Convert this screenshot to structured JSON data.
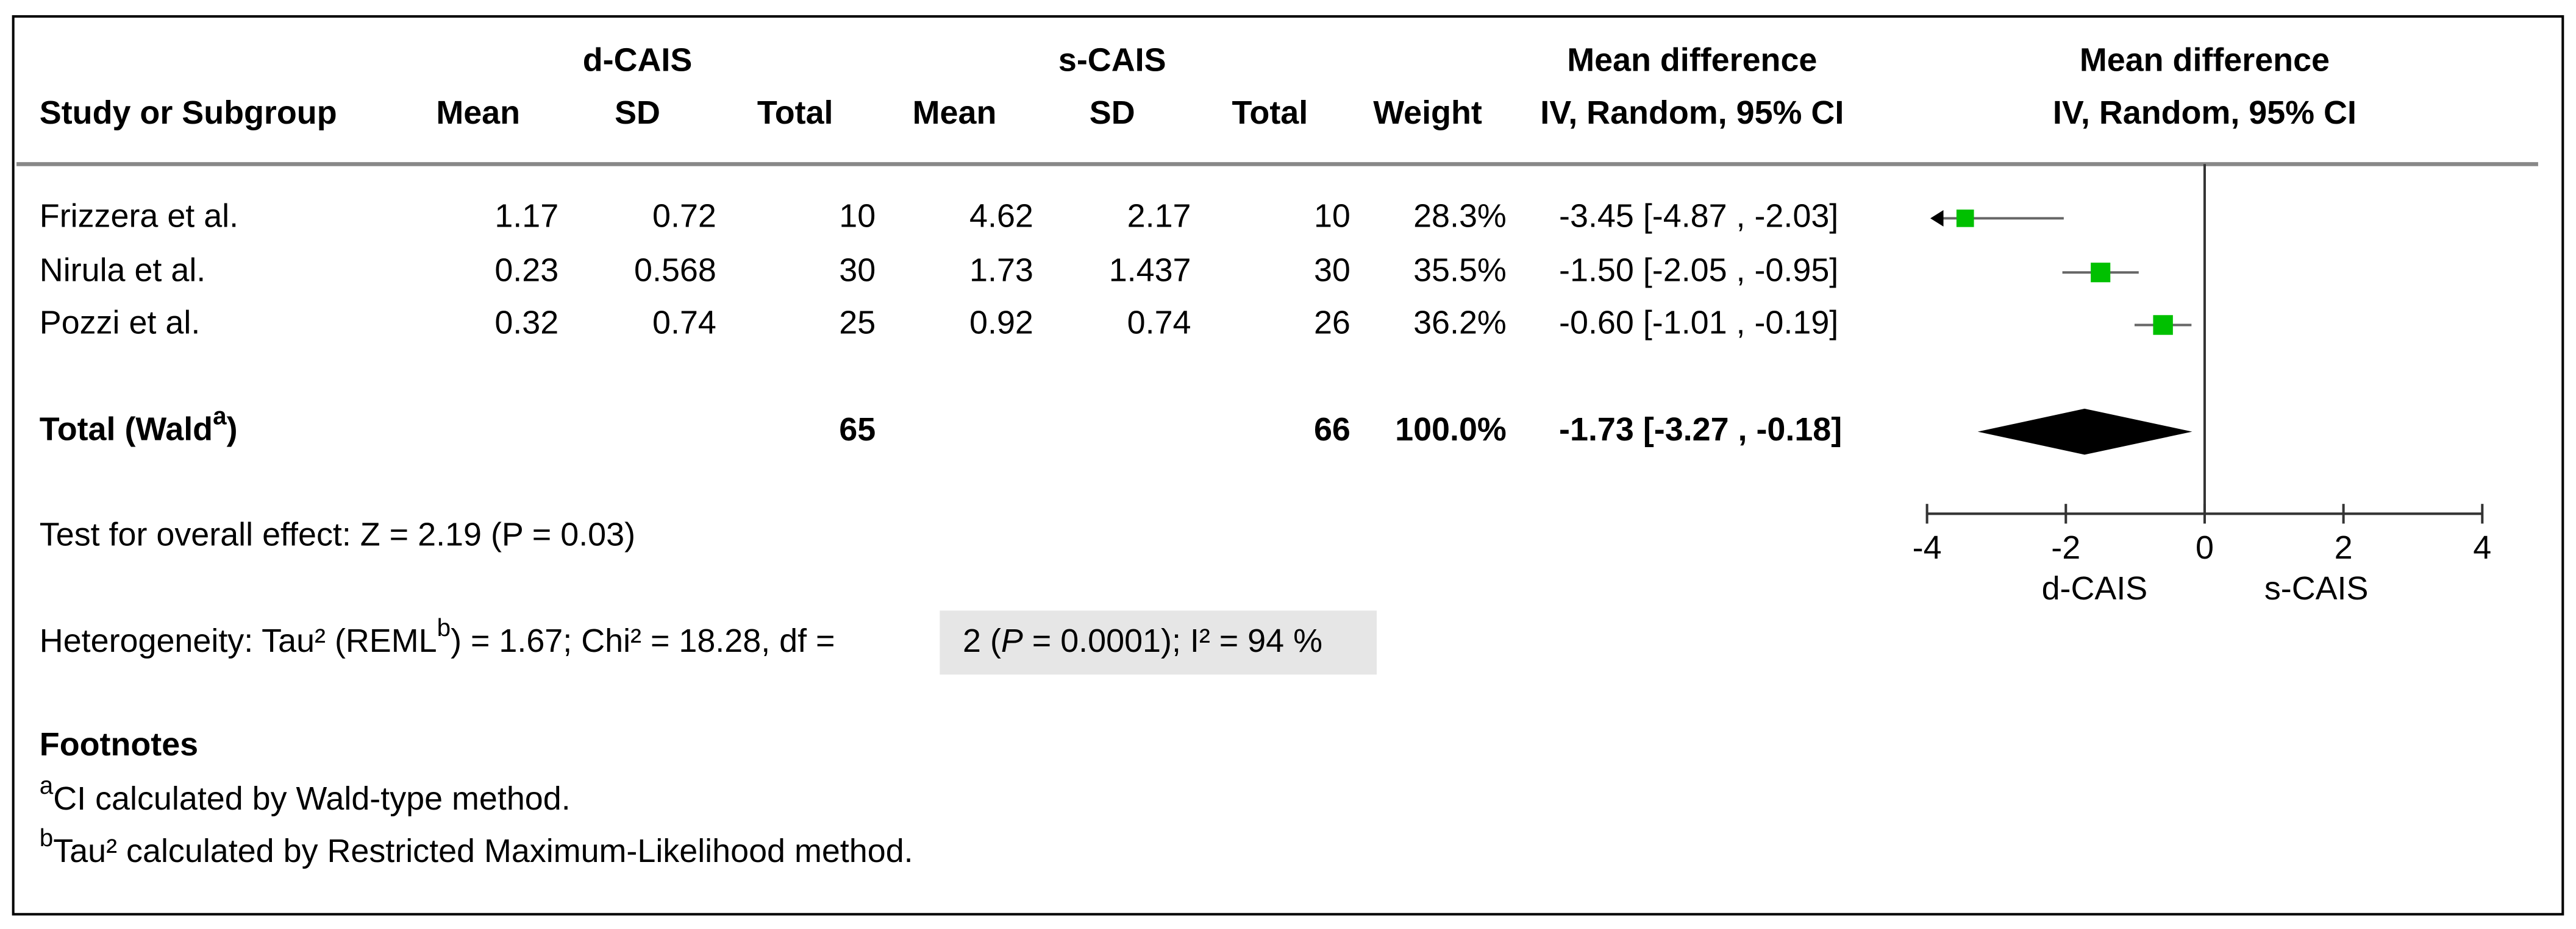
{
  "chart_data": {
    "type": "forest",
    "group_headers": [
      "d-CAIS",
      "s-CAIS"
    ],
    "columns": [
      "Study or Subgroup",
      "Mean",
      "SD",
      "Total",
      "Mean",
      "SD",
      "Total",
      "Weight"
    ],
    "effect_header": [
      "Mean difference",
      "IV, Random, 95% CI"
    ],
    "plot_header": [
      "Mean difference",
      "IV, Random, 95% CI"
    ],
    "studies": [
      {
        "name": "Frizzera et al.",
        "d_mean": 1.17,
        "d_sd": 0.72,
        "d_n": 10,
        "s_mean": 4.62,
        "s_sd": 2.17,
        "s_n": 10,
        "weight": 28.3,
        "weight_label": "28.3%",
        "md": -3.45,
        "lower": -4.87,
        "upper": -2.03,
        "ci_label": "-3.45 [-4.87 , -2.03]"
      },
      {
        "name": "Nirula et al.",
        "d_mean": 0.23,
        "d_sd": 0.568,
        "d_n": 30,
        "s_mean": 1.73,
        "s_sd": 1.437,
        "s_n": 30,
        "weight": 35.5,
        "weight_label": "35.5%",
        "md": -1.5,
        "lower": -2.05,
        "upper": -0.95,
        "ci_label": "-1.50 [-2.05 , -0.95]"
      },
      {
        "name": "Pozzi et al.",
        "d_mean": 0.32,
        "d_sd": 0.74,
        "d_n": 25,
        "s_mean": 0.92,
        "s_sd": 0.74,
        "s_n": 26,
        "weight": 36.2,
        "weight_label": "36.2%",
        "md": -0.6,
        "lower": -1.01,
        "upper": -0.19,
        "ci_label": "-0.60 [-1.01 , -0.19]"
      }
    ],
    "total": {
      "label": [
        "Total (Wald",
        "a",
        ")"
      ],
      "d_n": 65,
      "s_n": 66,
      "weight": 100,
      "weight_label": "100.0%",
      "md": -1.73,
      "lower": -3.27,
      "upper": -0.18,
      "ci_label": "-1.73 [-3.27 , -0.18]"
    },
    "overall_test": "Test for overall effect: Z = 2.19 (P = 0.03)",
    "heterogeneity": [
      "Heterogeneity: Tau² (REML",
      "b",
      ") = 1.67; Chi² = 18.28, df = "
    ],
    "heterogeneity_box": [
      "2 (",
      "P",
      " = 0.0001); I² = 94 %"
    ],
    "footnotes_title": "Footnotes",
    "footnotes": [
      [
        "a",
        "CI calculated by Wald-type method."
      ],
      [
        "b",
        "Tau² calculated by Restricted Maximum-Likelihood method."
      ]
    ],
    "xlim": [
      -4,
      4
    ],
    "xticks": [
      -4,
      -2,
      0,
      2,
      4
    ],
    "x_labels": [
      "d-CAIS",
      "s-CAIS"
    ],
    "square_color": "#00c000",
    "whisker_color": "#666666",
    "diamond_color": "#000000"
  }
}
